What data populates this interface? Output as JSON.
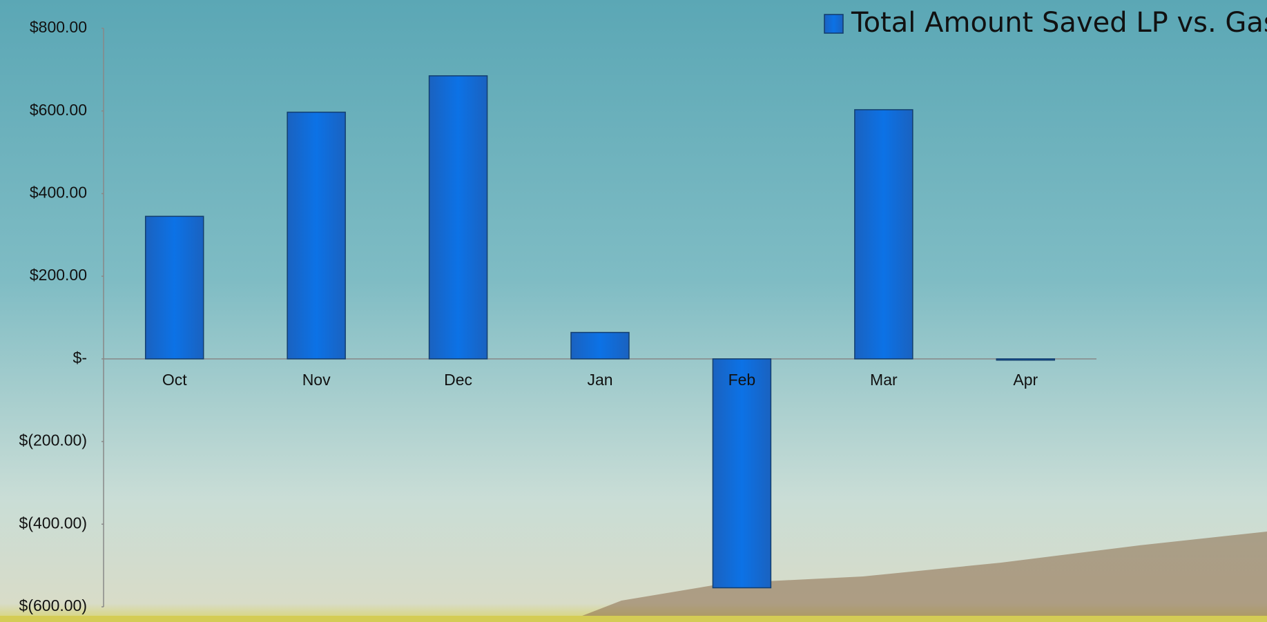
{
  "chart_data": {
    "type": "bar",
    "categories": [
      "Oct",
      "Nov",
      "Dec",
      "Jan",
      "Feb",
      "Mar",
      "Apr"
    ],
    "series": [
      {
        "name": "Total Amount Saved LP vs. Gas",
        "color": "#0b6ad8",
        "values": [
          345,
          597,
          685,
          64,
          -554,
          603,
          -3
        ]
      }
    ],
    "ylim": [
      -600,
      800
    ],
    "yticks": [
      {
        "value": -600,
        "label": "$(600.00)"
      },
      {
        "value": -400,
        "label": "$(400.00)"
      },
      {
        "value": -200,
        "label": "$(200.00)"
      },
      {
        "value": 0,
        "label": "$-"
      },
      {
        "value": 200,
        "label": "$200.00"
      },
      {
        "value": 400,
        "label": "$400.00"
      },
      {
        "value": 600,
        "label": "$600.00"
      },
      {
        "value": 800,
        "label": "$800.00"
      }
    ],
    "legend": "top-right"
  }
}
